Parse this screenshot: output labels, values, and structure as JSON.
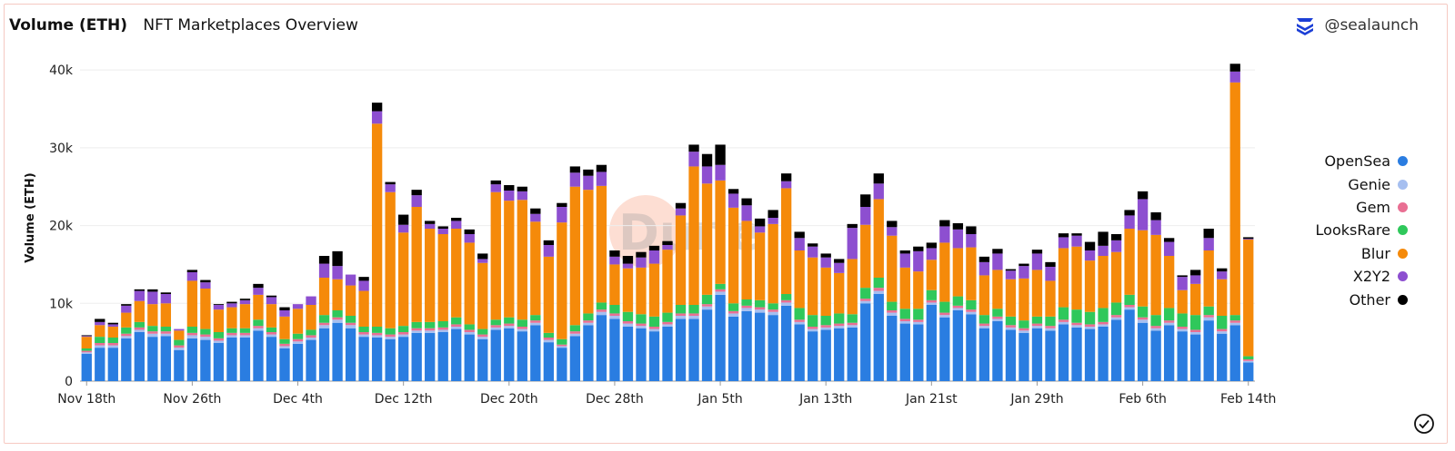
{
  "header": {
    "metric_label": "Volume (ETH)",
    "subtitle": "NFT Marketplaces Overview",
    "handle": "@sealaunch"
  },
  "watermark": "Dune",
  "chart_data": {
    "type": "bar",
    "stacked": true,
    "title": "NFT Marketplaces Overview",
    "ylabel": "Volume (ETH)",
    "xlabel": "",
    "ylim": [
      0,
      42000
    ],
    "y_ticks": [
      0,
      10000,
      20000,
      30000,
      40000
    ],
    "y_tick_labels": [
      "0",
      "10k",
      "20k",
      "30k",
      "40k"
    ],
    "x_tick_labels": [
      {
        "index": 0,
        "label": "Nov 18th"
      },
      {
        "index": 8,
        "label": "Nov 26th"
      },
      {
        "index": 16,
        "label": "Dec 4th"
      },
      {
        "index": 24,
        "label": "Dec 12th"
      },
      {
        "index": 32,
        "label": "Dec 20th"
      },
      {
        "index": 40,
        "label": "Dec 28th"
      },
      {
        "index": 48,
        "label": "Jan 5th"
      },
      {
        "index": 56,
        "label": "Jan 13th"
      },
      {
        "index": 64,
        "label": "Jan 21st"
      },
      {
        "index": 72,
        "label": "Jan 29th"
      },
      {
        "index": 80,
        "label": "Feb 6th"
      },
      {
        "index": 88,
        "label": "Feb 14th"
      }
    ],
    "legend_position": "right",
    "series": [
      {
        "name": "OpenSea",
        "color": "#2a7de1"
      },
      {
        "name": "Genie",
        "color": "#a6bff0"
      },
      {
        "name": "Gem",
        "color": "#e96f93"
      },
      {
        "name": "LooksRare",
        "color": "#2fc85b"
      },
      {
        "name": "Blur",
        "color": "#f58a0a"
      },
      {
        "name": "X2Y2",
        "color": "#8d4fd0"
      },
      {
        "name": "Other",
        "color": "#000000"
      }
    ],
    "totals": [
      5900,
      8000,
      7500,
      9900,
      11800,
      11800,
      11400,
      8700,
      14300,
      13000,
      9900,
      10200,
      10600,
      12500,
      11000,
      9500,
      11800,
      11900,
      16700,
      15400,
      13700,
      13100,
      35000,
      25700,
      20300,
      26300,
      20600,
      19800,
      21500,
      19200,
      16500,
      26200,
      25600,
      26400,
      21800,
      17900,
      23600,
      30000,
      30000,
      27800,
      18800,
      18300,
      19400,
      21400,
      22600,
      24000,
      32300,
      30000,
      30400,
      28300,
      23400,
      21600,
      23400,
      27300,
      20000,
      21700,
      19300,
      20200,
      20200,
      28400,
      27900,
      22300,
      17800,
      17600,
      17500,
      22300,
      21100,
      20200,
      17200,
      17400,
      17000,
      15300,
      17400,
      17000,
      21400,
      19900,
      20000,
      20500,
      20500,
      22300,
      27000,
      23200,
      19300,
      15700,
      16300,
      20400,
      16700,
      41000,
      18300
    ],
    "opensea": [
      3500,
      4300,
      4300,
      5500,
      6300,
      5700,
      5800,
      4000,
      5500,
      5300,
      4900,
      5600,
      5600,
      6500,
      5700,
      4200,
      4800,
      5300,
      6800,
      7500,
      6800,
      5700,
      5600,
      5400,
      5700,
      6200,
      6200,
      6300,
      6700,
      6000,
      5400,
      6600,
      6800,
      6400,
      7200,
      5000,
      4300,
      5800,
      7200,
      8500,
      8000,
      7000,
      6800,
      6400,
      7000,
      8000,
      8000,
      9200,
      11100,
      8300,
      9000,
      8800,
      8500,
      9700,
      7300,
      6400,
      6600,
      6800,
      6900,
      10000,
      11200,
      8400,
      7400,
      7300,
      9800,
      8200,
      9100,
      8600,
      6800,
      7700,
      6600,
      6200,
      6800,
      6500,
      7300,
      6900,
      6700,
      7000,
      7900,
      9200,
      7500,
      6500,
      7200,
      6400,
      6000,
      7800,
      6100,
      7200,
      2400
    ],
    "genie": [
      200,
      300,
      300,
      300,
      300,
      400,
      300,
      300,
      400,
      400,
      300,
      300,
      300,
      300,
      300,
      300,
      300,
      300,
      400,
      400,
      400,
      300,
      300,
      300,
      300,
      300,
      300,
      300,
      300,
      300,
      300,
      300,
      300,
      300,
      300,
      300,
      200,
      300,
      300,
      400,
      400,
      400,
      300,
      300,
      300,
      400,
      400,
      400,
      400,
      400,
      400,
      400,
      400,
      400,
      300,
      300,
      300,
      300,
      300,
      300,
      400,
      400,
      300,
      300,
      300,
      300,
      300,
      300,
      300,
      300,
      300,
      300,
      300,
      300,
      300,
      300,
      300,
      300,
      300,
      300,
      400,
      300,
      300,
      300,
      300,
      400,
      300,
      300,
      200
    ],
    "gem": [
      200,
      300,
      300,
      300,
      300,
      300,
      300,
      300,
      300,
      300,
      300,
      300,
      300,
      300,
      300,
      300,
      300,
      300,
      300,
      300,
      300,
      300,
      300,
      300,
      300,
      300,
      300,
      300,
      300,
      300,
      300,
      300,
      300,
      300,
      300,
      300,
      200,
      300,
      300,
      300,
      300,
      300,
      300,
      300,
      300,
      300,
      300,
      300,
      300,
      300,
      300,
      300,
      300,
      300,
      300,
      300,
      300,
      300,
      300,
      300,
      400,
      300,
      300,
      300,
      300,
      300,
      300,
      300,
      300,
      300,
      300,
      300,
      300,
      300,
      300,
      300,
      300,
      300,
      300,
      300,
      300,
      300,
      300,
      300,
      300,
      300,
      300,
      300,
      200
    ],
    "looksrare": [
      300,
      800,
      700,
      800,
      700,
      700,
      600,
      700,
      800,
      700,
      800,
      600,
      600,
      800,
      600,
      600,
      700,
      700,
      1000,
      900,
      900,
      700,
      800,
      800,
      800,
      800,
      800,
      800,
      900,
      700,
      700,
      700,
      800,
      900,
      700,
      600,
      700,
      800,
      900,
      900,
      1100,
      1200,
      1200,
      1300,
      1200,
      1100,
      1100,
      1200,
      700,
      1000,
      800,
      900,
      800,
      800,
      1500,
      1500,
      1200,
      1300,
      1100,
      1400,
      1300,
      1100,
      1300,
      1400,
      1300,
      1400,
      1200,
      1200,
      1100,
      1000,
      1100,
      1000,
      900,
      1200,
      1600,
      1700,
      1600,
      1800,
      1600,
      1300,
      1400,
      1400,
      1600,
      1700,
      1900,
      1100,
      1700,
      700,
      400
    ],
    "blur": [
      1500,
      1500,
      1400,
      1900,
      2700,
      2800,
      3000,
      1200,
      5900,
      5200,
      2900,
      2700,
      3100,
      3200,
      3000,
      2900,
      3200,
      3200,
      4800,
      4000,
      3900,
      4600,
      26100,
      17500,
      12000,
      14800,
      12000,
      11200,
      11400,
      10500,
      8500,
      16400,
      15000,
      15400,
      12000,
      9800,
      15000,
      17800,
      15900,
      15000,
      5200,
      5600,
      6000,
      6800,
      8100,
      11500,
      17800,
      14300,
      13300,
      12300,
      10100,
      8700,
      10200,
      13600,
      7400,
      7400,
      6200,
      5200,
      7100,
      8100,
      10100,
      8500,
      5300,
      4800,
      3900,
      7600,
      6200,
      6800,
      5100,
      5000,
      4800,
      5400,
      6000,
      4600,
      7600,
      8100,
      6600,
      6700,
      6500,
      8500,
      9800,
      10300,
      6700,
      3000,
      4000,
      7200,
      4700,
      29900,
      15000
    ],
    "x2y2": [
      100,
      400,
      300,
      900,
      1300,
      1600,
      1200,
      200,
      1100,
      800,
      600,
      500,
      500,
      900,
      900,
      800,
      600,
      1100,
      1800,
      1700,
      1400,
      1300,
      1600,
      1000,
      1000,
      1500,
      600,
      700,
      1000,
      1100,
      500,
      1000,
      1300,
      1100,
      1000,
      1500,
      2000,
      1800,
      1800,
      1800,
      1000,
      600,
      1300,
      1700,
      600,
      900,
      1900,
      2200,
      2000,
      1800,
      2000,
      800,
      800,
      900,
      1600,
      1400,
      1300,
      1300,
      4000,
      2300,
      2000,
      1100,
      1800,
      2600,
      1500,
      2100,
      2400,
      1700,
      1700,
      2100,
      1100,
      1600,
      2100,
      1800,
      1400,
      1400,
      1300,
      1300,
      1500,
      1700,
      4000,
      1900,
      1800,
      1700,
      1100,
      1600,
      1000,
      1400,
      100
    ],
    "other": [
      100,
      400,
      200,
      200,
      200,
      300,
      200,
      0,
      300,
      300,
      100,
      200,
      200,
      500,
      200,
      400,
      0,
      0,
      1000,
      1900,
      0,
      500,
      1100,
      300,
      1300,
      700,
      400,
      300,
      400,
      600,
      700,
      500,
      700,
      600,
      700,
      600,
      500,
      800,
      800,
      900,
      800,
      1000,
      700,
      600,
      500,
      700,
      900,
      1600,
      2600,
      600,
      900,
      1000,
      1000,
      1000,
      800,
      400,
      500,
      500,
      500,
      1600,
      1300,
      800,
      400,
      600,
      700,
      800,
      800,
      1000,
      700,
      600,
      200,
      300,
      500,
      600,
      500,
      300,
      1100,
      1800,
      800,
      700,
      1000,
      1000,
      500,
      200,
      700,
      1200,
      400,
      1000,
      200
    ]
  }
}
